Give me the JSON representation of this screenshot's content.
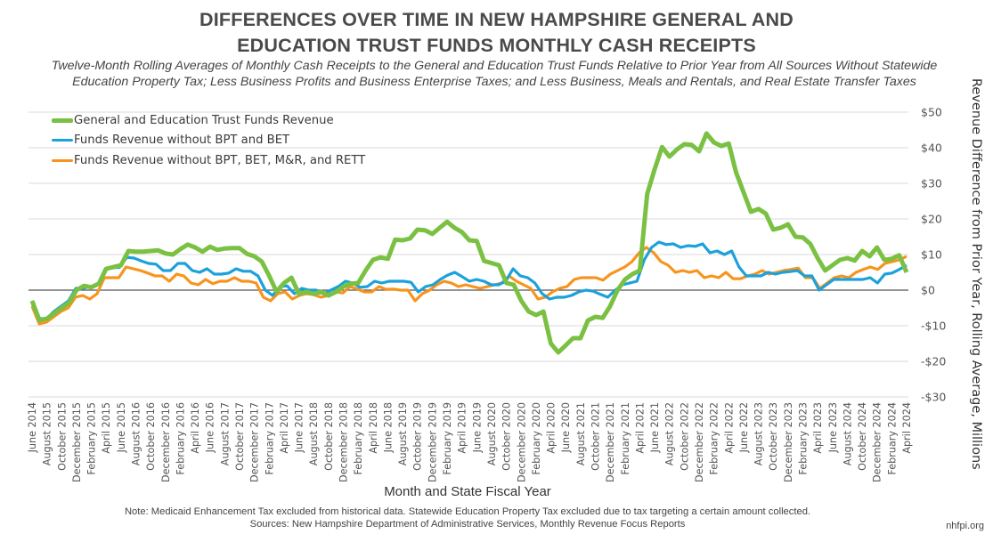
{
  "chart_data": {
    "type": "line",
    "title": "DIFFERENCES OVER TIME IN NEW HAMPSHIRE GENERAL AND EDUCATION TRUST FUNDS MONTHLY CASH RECEIPTS",
    "title_lines": [
      "DIFFERENCES OVER TIME IN NEW HAMPSHIRE GENERAL AND",
      "EDUCATION TRUST FUNDS MONTHLY CASH RECEIPTS"
    ],
    "subtitle": "Twelve-Month Rolling Averages of Monthly Cash Receipts to the General and Education Trust Funds Relative to Prior Year from All Sources Without Statewide Education Property Tax; Less Business Profits and Business Enterprise Taxes; and Less Business, Meals and Rentals, and Real Estate Transfer Taxes",
    "xlabel": "Month and State Fiscal Year",
    "ylabel": "Revenue Difference from Prior Year, Rolling Average, Millions",
    "ylim": [
      -30,
      50
    ],
    "yticks": [
      50,
      40,
      30,
      20,
      10,
      0,
      -10,
      -20,
      -30
    ],
    "ytick_labels": [
      "$50",
      "$40",
      "$30",
      "$20",
      "$10",
      "$0",
      "-$10",
      "-$20",
      "-$30"
    ],
    "grid": true,
    "legend_position": "top-left",
    "x_tick_labels": [
      "June 2014",
      "August 2015",
      "October 2015",
      "December 2015",
      "February 2015",
      "April 2015",
      "June 2015",
      "August 2016",
      "October 2016",
      "December 2016",
      "February 2016",
      "April 2016",
      "June 2016",
      "August 2017",
      "October 2017",
      "December 2017",
      "February 2017",
      "April 2017",
      "June 2017",
      "August 2018",
      "October 2018",
      "December 2018",
      "February 2018",
      "April 2018",
      "June 2018",
      "August 2019",
      "October 2019",
      "December 2019",
      "February 2019",
      "April 2019",
      "June 2019",
      "August 2020",
      "October 2020",
      "December 2020",
      "February 2020",
      "April 2020",
      "June 2020",
      "August 2021",
      "October 2021",
      "December 2021",
      "February 2021",
      "April 2021",
      "June 2021",
      "August 2022",
      "October 2022",
      "December 2022",
      "February 2022",
      "April 2022",
      "June 2022",
      "August 2023",
      "October 2023",
      "December 2023",
      "February 2023",
      "April 2023",
      "June 2023",
      "August 2024",
      "October 2024",
      "December 2024",
      "February 2024",
      "April 2024"
    ],
    "series": [
      {
        "name": "General and Education Trust Funds Revenue",
        "color": "#7ac143",
        "values": [
          -3,
          -8.5,
          -8,
          -6.5,
          -5,
          -3.5,
          0,
          1.2,
          0.8,
          1.8,
          6,
          6.5,
          7,
          11,
          10.8,
          10.8,
          11,
          11.2,
          10.3,
          10,
          11.5,
          12.8,
          12,
          10.8,
          12.2,
          11.3,
          11.7,
          11.8,
          11.8,
          10.2,
          9.5,
          8,
          4,
          -0.5,
          2,
          3.5,
          -1,
          -0.5,
          -1,
          -0.5,
          -1.5,
          -0.5,
          1,
          1.8,
          2,
          5.5,
          8.5,
          9.2,
          8.8,
          14.2,
          14,
          14.5,
          17,
          16.8,
          15.8,
          17.5,
          19.2,
          17.5,
          16.3,
          14,
          13.8,
          8.2,
          7.6,
          7,
          2,
          1.5,
          -3,
          -6,
          -7,
          -6,
          -15,
          -17.5,
          -15.5,
          -13.5,
          -13.5,
          -8.5,
          -7.5,
          -7.8,
          -4.5,
          0,
          3,
          4.5,
          5.5,
          27,
          34,
          40.2,
          37.5,
          39.5,
          41,
          40.8,
          39,
          44,
          41.5,
          40.5,
          41.2,
          33,
          27.5,
          22,
          22.8,
          21.5,
          17,
          17.5,
          18.5,
          15,
          14.8,
          13,
          9,
          5.5,
          7,
          8.5,
          9,
          8.3,
          11,
          9.5,
          12,
          8.5,
          8.8,
          9.8,
          5
        ]
      },
      {
        "name": "Funds Revenue without BPT and BET",
        "color": "#1ba1dc",
        "values": [
          -3,
          -8,
          -8,
          -6,
          -4.5,
          -3,
          0.5,
          0.5,
          1,
          1.5,
          5.8,
          6.3,
          6.4,
          9.2,
          9,
          8.2,
          7.5,
          7.3,
          5.5,
          5.5,
          7.5,
          7.5,
          5.5,
          5,
          6,
          4.5,
          4.5,
          4.8,
          6,
          5.3,
          5.3,
          4,
          0,
          -1.5,
          1,
          1.2,
          -1,
          0.5,
          0,
          0,
          -1,
          0,
          1,
          2.5,
          2,
          0.8,
          1,
          2.5,
          2,
          2.5,
          2.5,
          2.5,
          2.2,
          -0.5,
          1,
          1.5,
          3,
          4.2,
          5,
          3.8,
          2.5,
          3,
          2.5,
          1.5,
          1.5,
          2.5,
          6,
          4,
          3.5,
          2,
          -1,
          -2.5,
          -2,
          -2,
          -1.5,
          -0.5,
          0,
          -0.3,
          -1.2,
          -2,
          0,
          1.5,
          2,
          2.5,
          8.5,
          12,
          13.5,
          12.8,
          13,
          12,
          12.5,
          12.3,
          13,
          10.5,
          11,
          10,
          11,
          6.5,
          4,
          4,
          4,
          5,
          4.5,
          5,
          5.2,
          5.5,
          4,
          4,
          0,
          1.5,
          3,
          3,
          3,
          3,
          3,
          3.5,
          2,
          4.5,
          4.8,
          5.8,
          7
        ]
      },
      {
        "name": "Funds Revenue without BPT, BET, M&R, and RETT",
        "color": "#f7941d",
        "values": [
          -4.5,
          -9.5,
          -9,
          -7.5,
          -6,
          -5,
          -2,
          -1.5,
          -2.5,
          -1,
          3.5,
          3.5,
          3.5,
          6.5,
          6,
          5.5,
          4.8,
          4,
          4,
          2.5,
          4.5,
          4,
          2,
          1.5,
          3,
          1.8,
          2.5,
          2.5,
          3.5,
          2.5,
          2.5,
          2,
          -2,
          -3,
          -1,
          -0.5,
          -2.5,
          -1.5,
          -1,
          -1.3,
          -2,
          -1.5,
          -0.5,
          -0.8,
          1,
          0.3,
          -0.5,
          -0.5,
          1,
          0.2,
          0.3,
          0,
          0,
          -3,
          -1,
          0,
          1.5,
          2.5,
          2,
          1,
          1.5,
          1,
          0.5,
          1,
          1.5,
          2,
          4,
          2.5,
          1.5,
          0.5,
          -2.5,
          -2,
          -0.5,
          0.5,
          1,
          3,
          3.5,
          3.5,
          3.5,
          2.8,
          4.5,
          5.5,
          6.5,
          8,
          10.5,
          12,
          10.5,
          8,
          7,
          5,
          5.5,
          5,
          5.5,
          3.5,
          4,
          3.5,
          5,
          3.2,
          3.2,
          4,
          4.5,
          5.5,
          4.5,
          5,
          5.5,
          5.8,
          6.2,
          3.5,
          3.5,
          0.5,
          2,
          3.5,
          4,
          3.5,
          5,
          5.8,
          6.5,
          5.8,
          7.5,
          8,
          8.5,
          9.5
        ]
      }
    ]
  },
  "notes": {
    "note_line": "Note: Medicaid Enhancement Tax excluded from historical data. Statewide Education Property Tax excluded due to tax targeting a certain amount collected.",
    "sources_line": "Sources: New Hampshire Department of Administrative Services, Monthly Revenue Focus Reports",
    "credit": "nhfpi.org"
  }
}
